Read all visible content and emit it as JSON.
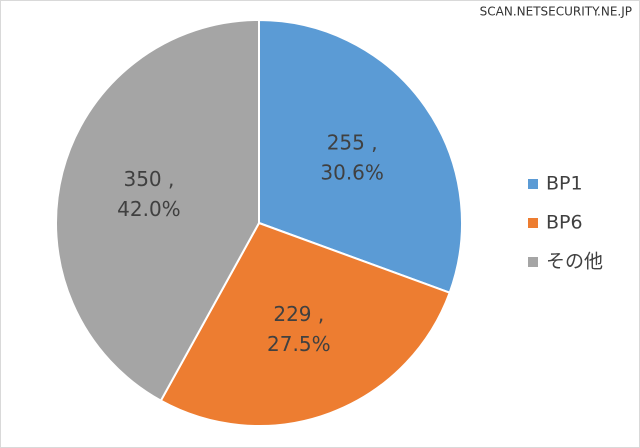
{
  "chart_data": {
    "type": "pie",
    "watermark": "SCAN.NETSECURITY.NE.JP",
    "categories": [
      "BP1",
      "BP6",
      "その他"
    ],
    "values": [
      255,
      229,
      350
    ],
    "value_labels": [
      "255 ,",
      "229 ,",
      "350 ,"
    ],
    "percents": [
      30.6,
      27.5,
      42.0
    ],
    "percent_labels": [
      "30.6%",
      "27.5%",
      "42.0%"
    ],
    "colors": [
      "#5b9bd5",
      "#ed7d31",
      "#a5a5a5"
    ],
    "legend": "right"
  }
}
